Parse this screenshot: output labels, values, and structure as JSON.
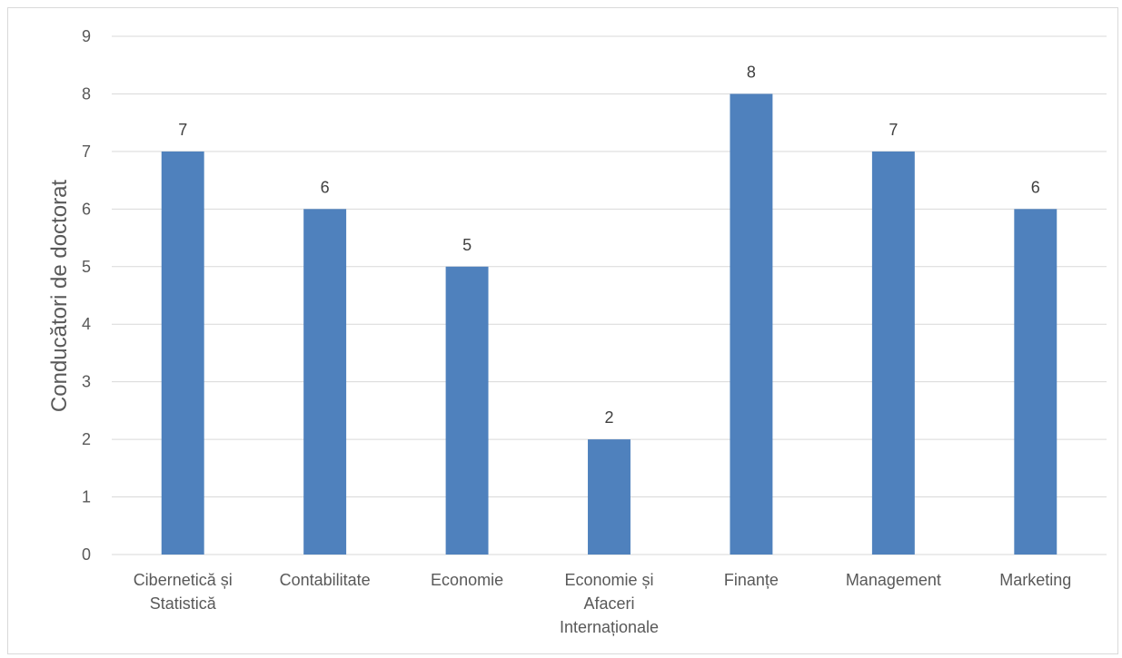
{
  "chart_data": {
    "type": "bar",
    "categories": [
      [
        "Cibernetică și",
        "Statistică"
      ],
      [
        "Contabilitate"
      ],
      [
        "Economie"
      ],
      [
        "Economie și",
        "Afaceri",
        "Internaționale"
      ],
      [
        "Finanțe"
      ],
      [
        "Management"
      ],
      [
        "Marketing"
      ]
    ],
    "values": [
      7,
      6,
      5,
      2,
      8,
      7,
      6
    ],
    "data_labels": [
      "7",
      "6",
      "5",
      "2",
      "8",
      "7",
      "6"
    ],
    "title": "",
    "xlabel": "",
    "ylabel": "Conducători de doctorat",
    "ylim": [
      0,
      9
    ],
    "yticks": [
      "0",
      "1",
      "2",
      "3",
      "4",
      "5",
      "6",
      "7",
      "8",
      "9"
    ],
    "grid": true,
    "legend": "none",
    "bar_color": "#4f81bd"
  }
}
